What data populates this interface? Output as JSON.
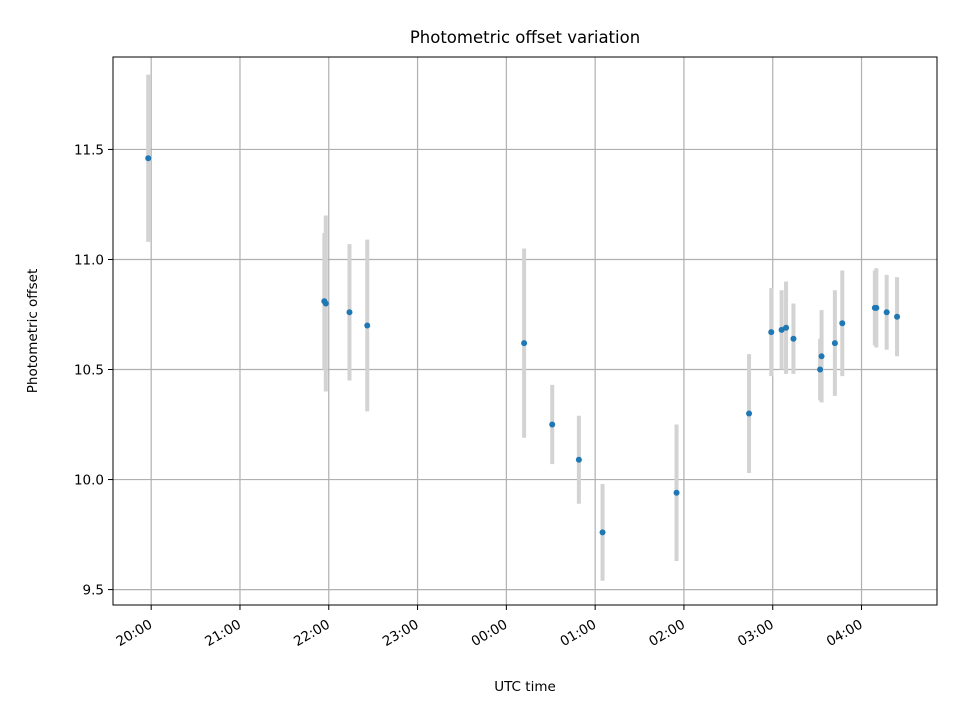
{
  "chart_data": {
    "type": "scatter",
    "title": "Photometric offset variation",
    "xlabel": "UTC time",
    "ylabel": "Photometric offset",
    "x_ticks": [
      "20:00",
      "21:00",
      "22:00",
      "23:00",
      "00:00",
      "01:00",
      "02:00",
      "03:00",
      "04:00"
    ],
    "y_ticks": [
      "9.5",
      "10.0",
      "10.5",
      "11.0",
      "11.5"
    ],
    "xlim_hours": [
      19.57,
      28.85
    ],
    "ylim": [
      9.43,
      11.92
    ],
    "grid": true,
    "colors": {
      "marker": "#1f77b4",
      "errorbar": "#d3d3d3",
      "grid": "#b0b0b0"
    },
    "points": [
      {
        "x": "19:58",
        "y": 11.46,
        "err": 0.38
      },
      {
        "x": "21:57",
        "y": 10.81,
        "err": 0.31
      },
      {
        "x": "21:58",
        "y": 10.8,
        "err": 0.4
      },
      {
        "x": "22:14",
        "y": 10.76,
        "err": 0.31
      },
      {
        "x": "22:26",
        "y": 10.7,
        "err": 0.39
      },
      {
        "x": "00:12",
        "y": 10.62,
        "err": 0.43
      },
      {
        "x": "00:31",
        "y": 10.25,
        "err": 0.18
      },
      {
        "x": "00:49",
        "y": 10.09,
        "err": 0.2
      },
      {
        "x": "01:05",
        "y": 9.76,
        "err": 0.22
      },
      {
        "x": "01:55",
        "y": 9.94,
        "err": 0.31
      },
      {
        "x": "02:44",
        "y": 10.3,
        "err": 0.27
      },
      {
        "x": "02:59",
        "y": 10.67,
        "err": 0.2
      },
      {
        "x": "03:06",
        "y": 10.68,
        "err": 0.18
      },
      {
        "x": "03:09",
        "y": 10.69,
        "err": 0.21
      },
      {
        "x": "03:14",
        "y": 10.64,
        "err": 0.16
      },
      {
        "x": "03:32",
        "y": 10.5,
        "err": 0.14
      },
      {
        "x": "03:33",
        "y": 10.56,
        "err": 0.21
      },
      {
        "x": "03:42",
        "y": 10.62,
        "err": 0.24
      },
      {
        "x": "03:47",
        "y": 10.71,
        "err": 0.24
      },
      {
        "x": "04:09",
        "y": 10.78,
        "err": 0.17
      },
      {
        "x": "04:10",
        "y": 10.78,
        "err": 0.18
      },
      {
        "x": "04:17",
        "y": 10.76,
        "err": 0.17
      },
      {
        "x": "04:24",
        "y": 10.74,
        "err": 0.18
      }
    ]
  }
}
